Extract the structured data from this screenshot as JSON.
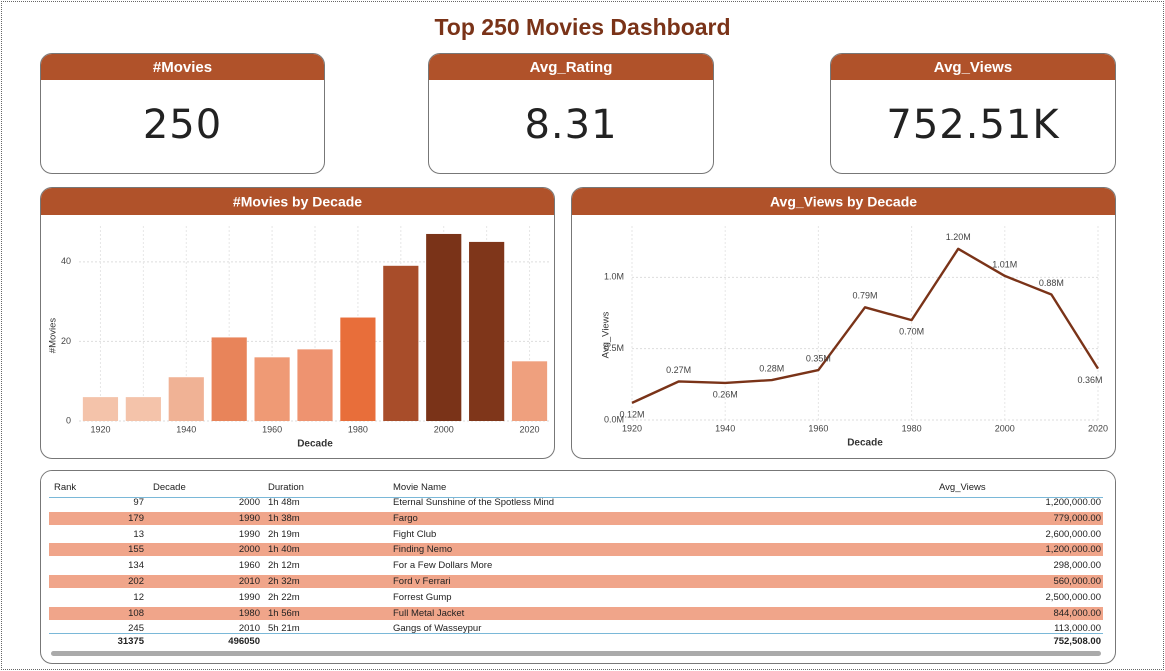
{
  "title": "Top 250 Movies Dashboard",
  "kpis": [
    {
      "label": "#Movies",
      "value": "250"
    },
    {
      "label": "Avg_Rating",
      "value": "8.31"
    },
    {
      "label": "Avg_Views",
      "value": "752.51K"
    }
  ],
  "chart_data": [
    {
      "type": "bar",
      "title": "#Movies by Decade",
      "x_label": "Decade",
      "y_label": "#Movies",
      "categories": [
        "1920",
        null,
        "1940",
        null,
        "1960",
        null,
        "1980",
        null,
        "2000",
        null,
        "2020"
      ],
      "values": [
        6,
        6,
        11,
        21,
        16,
        18,
        26,
        39,
        47,
        45,
        15
      ],
      "colors": [
        "#f4c3aa",
        "#f4c3aa",
        "#f0b295",
        "#e8845a",
        "#ef9a75",
        "#ee9370",
        "#e86e3a",
        "#a84d2a",
        "#7a3318",
        "#7f361a",
        "#efa07e"
      ],
      "ylim": [
        0,
        49
      ],
      "yticks": [
        0,
        20,
        40
      ],
      "grid": true
    },
    {
      "type": "line",
      "title": "Avg_Views by Decade",
      "x_label": "Decade",
      "y_label": "Avg_Views",
      "x": [
        1920,
        1930,
        1940,
        1950,
        1960,
        1970,
        1980,
        1990,
        2000,
        2010,
        2020
      ],
      "values": [
        120000,
        270000,
        260000,
        280000,
        350000,
        790000,
        700000,
        1200000,
        1010000,
        880000,
        360000
      ],
      "value_labels": [
        "0.12M",
        "0.27M",
        "0.26M",
        "0.28M",
        "0.35M",
        "0.79M",
        "0.70M",
        "1.20M",
        "1.01M",
        "0.88M",
        "0.36M"
      ],
      "color": "#7a3318",
      "xlim": [
        1920,
        2020
      ],
      "xticks": [
        1920,
        1940,
        1960,
        1980,
        2000,
        2020
      ],
      "ylim": [
        0,
        1360000
      ],
      "yticks": [
        {
          "value": 0,
          "label": "0.0M"
        },
        {
          "value": 500000,
          "label": "0.5M"
        },
        {
          "value": 1000000,
          "label": "1.0M"
        }
      ],
      "grid": true
    }
  ],
  "table": {
    "columns": [
      "Rank",
      "Decade",
      "Duration",
      "Movie Name",
      "Avg_Views"
    ],
    "rows": [
      [
        "97",
        "2000",
        "1h 48m",
        "Eternal Sunshine of the Spotless Mind",
        "1,200,000.00"
      ],
      [
        "179",
        "1990",
        "1h 38m",
        "Fargo",
        "779,000.00"
      ],
      [
        "13",
        "1990",
        "2h 19m",
        "Fight Club",
        "2,600,000.00"
      ],
      [
        "155",
        "2000",
        "1h 40m",
        "Finding Nemo",
        "1,200,000.00"
      ],
      [
        "134",
        "1960",
        "2h 12m",
        "For a Few Dollars More",
        "298,000.00"
      ],
      [
        "202",
        "2010",
        "2h 32m",
        "Ford v Ferrari",
        "560,000.00"
      ],
      [
        "12",
        "1990",
        "2h 22m",
        "Forrest Gump",
        "2,500,000.00"
      ],
      [
        "108",
        "1980",
        "1h 56m",
        "Full Metal Jacket",
        "844,000.00"
      ],
      [
        "245",
        "2010",
        "5h 21m",
        "Gangs of Wasseypur",
        "113,000.00"
      ]
    ],
    "total": {
      "rank": "31375",
      "decade": "496050",
      "avg_views": "752,508.00"
    }
  }
}
